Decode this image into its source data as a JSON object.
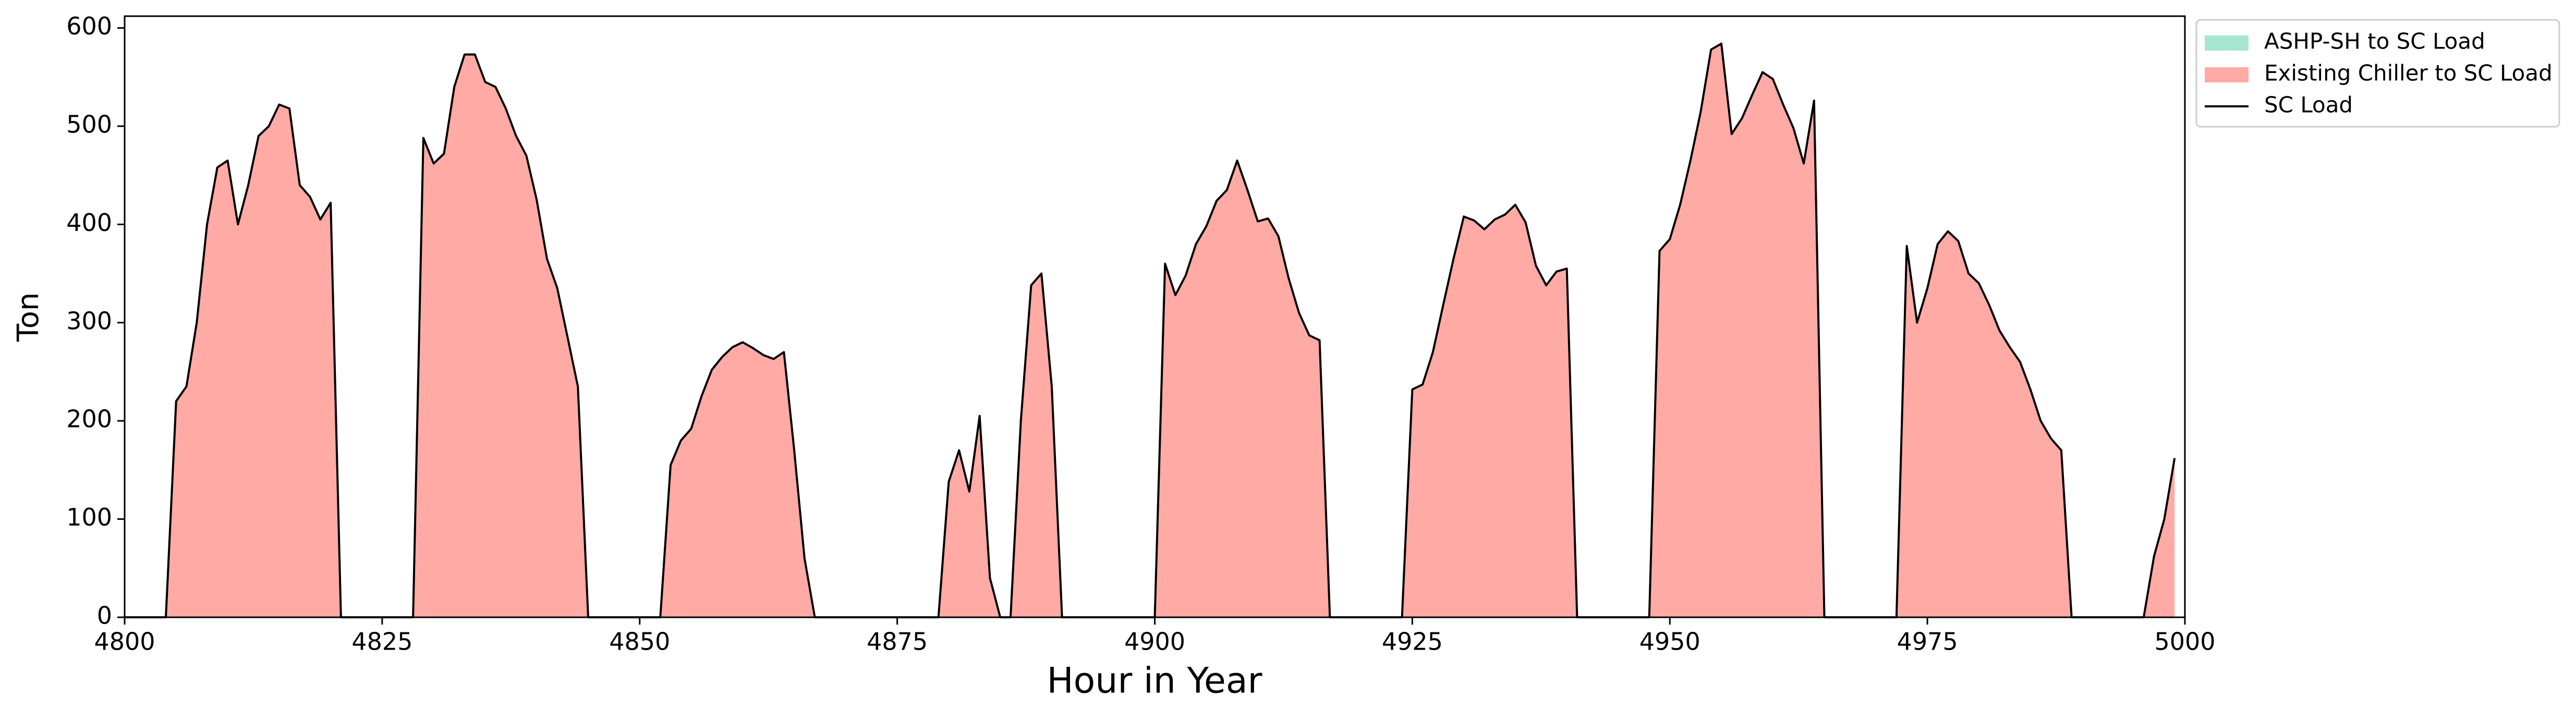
{
  "chart_data": {
    "type": "area",
    "xlabel": "Hour in Year",
    "ylabel": "Ton",
    "xlim": [
      4800,
      5000
    ],
    "ylim": [
      0,
      612
    ],
    "xticks": [
      4800,
      4825,
      4850,
      4875,
      4900,
      4925,
      4950,
      4975,
      5000
    ],
    "yticks": [
      0,
      100,
      200,
      300,
      400,
      500,
      600
    ],
    "legend": "outside-upper-right",
    "x": [
      4800,
      4801,
      4802,
      4803,
      4804,
      4805,
      4806,
      4807,
      4808,
      4809,
      4810,
      4811,
      4812,
      4813,
      4814,
      4815,
      4816,
      4817,
      4818,
      4819,
      4820,
      4821,
      4822,
      4823,
      4824,
      4825,
      4826,
      4827,
      4828,
      4829,
      4830,
      4831,
      4832,
      4833,
      4834,
      4835,
      4836,
      4837,
      4838,
      4839,
      4840,
      4841,
      4842,
      4843,
      4844,
      4845,
      4846,
      4847,
      4848,
      4849,
      4850,
      4851,
      4852,
      4853,
      4854,
      4855,
      4856,
      4857,
      4858,
      4859,
      4860,
      4861,
      4862,
      4863,
      4864,
      4865,
      4866,
      4867,
      4868,
      4869,
      4870,
      4871,
      4872,
      4873,
      4874,
      4875,
      4876,
      4877,
      4878,
      4879,
      4880,
      4881,
      4882,
      4883,
      4884,
      4885,
      4886,
      4887,
      4888,
      4889,
      4890,
      4891,
      4892,
      4893,
      4894,
      4895,
      4896,
      4897,
      4898,
      4899,
      4900,
      4901,
      4902,
      4903,
      4904,
      4905,
      4906,
      4907,
      4908,
      4909,
      4910,
      4911,
      4912,
      4913,
      4914,
      4915,
      4916,
      4917,
      4918,
      4919,
      4920,
      4921,
      4922,
      4923,
      4924,
      4925,
      4926,
      4927,
      4928,
      4929,
      4930,
      4931,
      4932,
      4933,
      4934,
      4935,
      4936,
      4937,
      4938,
      4939,
      4940,
      4941,
      4942,
      4943,
      4944,
      4945,
      4946,
      4947,
      4948,
      4949,
      4950,
      4951,
      4952,
      4953,
      4954,
      4955,
      4956,
      4957,
      4958,
      4959,
      4960,
      4961,
      4962,
      4963,
      4964,
      4965,
      4966,
      4967,
      4968,
      4969,
      4970,
      4971,
      4972,
      4973,
      4974,
      4975,
      4976,
      4977,
      4978,
      4979,
      4980,
      4981,
      4982,
      4983,
      4984,
      4985,
      4986,
      4987,
      4988,
      4989,
      4990,
      4991,
      4992,
      4993,
      4994,
      4995,
      4996,
      4997,
      4998,
      4999
    ],
    "series": [
      {
        "name": "ASHP-SH to SC Load",
        "kind": "area",
        "color": "#a6e6cf",
        "values": [
          0,
          0,
          0,
          0,
          0,
          0,
          0,
          0,
          0,
          0,
          0,
          0,
          0,
          0,
          0,
          0,
          0,
          0,
          0,
          0,
          0,
          0,
          0,
          0,
          0,
          0,
          0,
          0,
          0,
          0,
          0,
          0,
          0,
          0,
          0,
          0,
          0,
          0,
          0,
          0,
          0,
          0,
          0,
          0,
          0,
          0,
          0,
          0,
          0,
          0,
          0,
          0,
          0,
          0,
          0,
          0,
          0,
          0,
          0,
          0,
          0,
          0,
          0,
          0,
          0,
          0,
          0,
          0,
          0,
          0,
          0,
          0,
          0,
          0,
          0,
          0,
          0,
          0,
          0,
          0,
          0,
          0,
          0,
          0,
          0,
          0,
          0,
          0,
          0,
          0,
          0,
          0,
          0,
          0,
          0,
          0,
          0,
          0,
          0,
          0,
          0,
          0,
          0,
          0,
          0,
          0,
          0,
          0,
          0,
          0,
          0,
          0,
          0,
          0,
          0,
          0,
          0,
          0,
          0,
          0,
          0,
          0,
          0,
          0,
          0,
          0,
          0,
          0,
          0,
          0,
          0,
          0,
          0,
          0,
          0,
          0,
          0,
          0,
          0,
          0,
          0,
          0,
          0,
          0,
          0,
          0,
          0,
          0,
          0,
          0,
          0,
          0,
          0,
          0,
          0,
          0,
          0,
          0,
          0,
          0,
          0,
          0,
          0,
          0,
          0,
          0,
          0,
          0,
          0,
          0,
          0,
          0,
          0,
          0,
          0,
          0,
          0,
          0,
          0,
          0,
          0,
          0,
          0,
          0,
          0,
          0,
          0,
          0,
          0,
          0,
          0,
          0,
          0,
          0,
          0,
          0,
          0,
          0,
          0,
          0
        ]
      },
      {
        "name": "Existing Chiller to SC Load",
        "kind": "area",
        "color": "#ffaaa5",
        "values": [
          0,
          0,
          0,
          0,
          0,
          220,
          235,
          300,
          400,
          458,
          465,
          400,
          440,
          490,
          500,
          522,
          518,
          440,
          428,
          405,
          422,
          0,
          0,
          0,
          0,
          0,
          0,
          0,
          0,
          488,
          462,
          472,
          540,
          573,
          573,
          545,
          540,
          518,
          490,
          470,
          425,
          365,
          335,
          285,
          235,
          0,
          0,
          0,
          0,
          0,
          0,
          0,
          0,
          155,
          180,
          192,
          225,
          252,
          265,
          275,
          280,
          274,
          267,
          263,
          270,
          170,
          60,
          0,
          0,
          0,
          0,
          0,
          0,
          0,
          0,
          0,
          0,
          0,
          0,
          0,
          138,
          170,
          128,
          205,
          40,
          0,
          0,
          200,
          338,
          350,
          235,
          0,
          0,
          0,
          0,
          0,
          0,
          0,
          0,
          0,
          0,
          360,
          328,
          348,
          380,
          398,
          424,
          435,
          465,
          435,
          403,
          406,
          388,
          345,
          310,
          287,
          282,
          0,
          0,
          0,
          0,
          0,
          0,
          0,
          0,
          232,
          237,
          270,
          318,
          365,
          408,
          404,
          395,
          405,
          410,
          420,
          402,
          358,
          338,
          352,
          355,
          0,
          0,
          0,
          0,
          0,
          0,
          0,
          0,
          373,
          385,
          420,
          465,
          515,
          578,
          584,
          492,
          508,
          532,
          555,
          548,
          522,
          498,
          462,
          526,
          0,
          0,
          0,
          0,
          0,
          0,
          0,
          0,
          378,
          300,
          335,
          380,
          393,
          383,
          350,
          340,
          318,
          292,
          275,
          260,
          232,
          200,
          182,
          170,
          0,
          0,
          0,
          0,
          0,
          0,
          0,
          0,
          62,
          100,
          162
        ]
      },
      {
        "name": "SC Load",
        "kind": "line",
        "color": "#000000",
        "values": [
          0,
          0,
          0,
          0,
          0,
          220,
          235,
          300,
          400,
          458,
          465,
          400,
          440,
          490,
          500,
          522,
          518,
          440,
          428,
          405,
          422,
          0,
          0,
          0,
          0,
          0,
          0,
          0,
          0,
          488,
          462,
          472,
          540,
          573,
          573,
          545,
          540,
          518,
          490,
          470,
          425,
          365,
          335,
          285,
          235,
          0,
          0,
          0,
          0,
          0,
          0,
          0,
          0,
          155,
          180,
          192,
          225,
          252,
          265,
          275,
          280,
          274,
          267,
          263,
          270,
          170,
          60,
          0,
          0,
          0,
          0,
          0,
          0,
          0,
          0,
          0,
          0,
          0,
          0,
          0,
          138,
          170,
          128,
          205,
          40,
          0,
          0,
          200,
          338,
          350,
          235,
          0,
          0,
          0,
          0,
          0,
          0,
          0,
          0,
          0,
          0,
          360,
          328,
          348,
          380,
          398,
          424,
          435,
          465,
          435,
          403,
          406,
          388,
          345,
          310,
          287,
          282,
          0,
          0,
          0,
          0,
          0,
          0,
          0,
          0,
          232,
          237,
          270,
          318,
          365,
          408,
          404,
          395,
          405,
          410,
          420,
          402,
          358,
          338,
          352,
          355,
          0,
          0,
          0,
          0,
          0,
          0,
          0,
          0,
          373,
          385,
          420,
          465,
          515,
          578,
          584,
          492,
          508,
          532,
          555,
          548,
          522,
          498,
          462,
          526,
          0,
          0,
          0,
          0,
          0,
          0,
          0,
          0,
          378,
          300,
          335,
          380,
          393,
          383,
          350,
          340,
          318,
          292,
          275,
          260,
          232,
          200,
          182,
          170,
          0,
          0,
          0,
          0,
          0,
          0,
          0,
          0,
          62,
          100,
          162
        ]
      }
    ]
  }
}
